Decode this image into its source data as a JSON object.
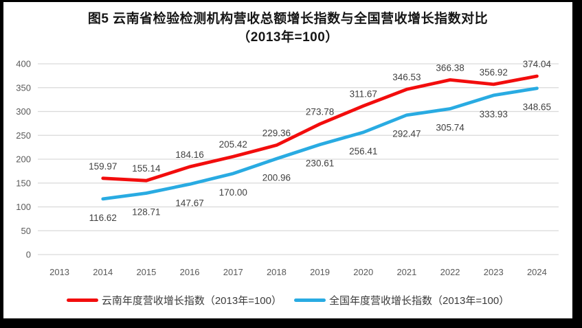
{
  "window": {
    "frame_color": "#000000",
    "background": "#ffffff"
  },
  "title": {
    "line1": "图5  云南省检验检测机构营收总额增长指数与全国营收增长指数对比",
    "line2": "（2013年=100）"
  },
  "chart_data": {
    "type": "line",
    "title": "图5 云南省检验检测机构营收总额增长指数与全国营收增长指数对比（2013年=100）",
    "categories": [
      "2013",
      "2014",
      "2015",
      "2016",
      "2017",
      "2018",
      "2019",
      "2020",
      "2021",
      "2022",
      "2023",
      "2024"
    ],
    "series": [
      {
        "name": "云南年度营收增长指数（2013年=100）",
        "color": "#f20d0d",
        "label_position": "above",
        "values": [
          null,
          159.97,
          155.14,
          184.16,
          205.42,
          229.36,
          273.78,
          311.67,
          346.53,
          366.38,
          356.92,
          374.04
        ]
      },
      {
        "name": "全国年度营收增长指数（2013年=100）",
        "color": "#29abe2",
        "label_position": "below",
        "values": [
          null,
          116.62,
          128.71,
          147.67,
          170.0,
          200.96,
          230.61,
          256.41,
          292.47,
          305.74,
          333.93,
          348.65
        ]
      }
    ],
    "ylim": [
      0,
      400
    ],
    "ytick_step": 50,
    "yticks": [
      0,
      50,
      100,
      150,
      200,
      250,
      300,
      350,
      400
    ],
    "grid": true,
    "legend_position": "bottom",
    "data_label_decimals": 2,
    "colors": {
      "gridline": "#d9d9d9",
      "axis_label": "#595959",
      "data_label": "#404040",
      "title": "#161616",
      "line_width": 4.8
    }
  }
}
